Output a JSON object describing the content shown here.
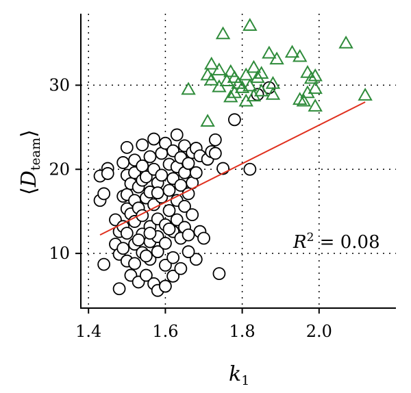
{
  "chart_data": {
    "type": "scatter",
    "title": "",
    "xlabel": "k",
    "xlabel_sub": "1",
    "ylabel": "D",
    "ylabel_sub": "team",
    "xlim": [
      1.38,
      2.2
    ],
    "ylim": [
      3.5,
      38.5
    ],
    "x_ticks": [
      1.4,
      1.6,
      1.8,
      2.0
    ],
    "x_tick_labels": [
      "1.4",
      "1.6",
      "1.8",
      "2.0"
    ],
    "y_ticks": [
      10,
      20,
      30
    ],
    "y_tick_labels": [
      "10",
      "20",
      "30"
    ],
    "grid": true,
    "annotation": {
      "r2_label": "R",
      "r2_sup": "2",
      "r2_value": " = 0.08"
    },
    "series": [
      {
        "marker": "circle",
        "color": "#000000",
        "points": [
          [
            1.43,
            19.2
          ],
          [
            1.43,
            16.3
          ],
          [
            1.44,
            17.1
          ],
          [
            1.45,
            20.1
          ],
          [
            1.45,
            19.5
          ],
          [
            1.44,
            8.7
          ],
          [
            1.47,
            14.0
          ],
          [
            1.47,
            11.1
          ],
          [
            1.48,
            12.6
          ],
          [
            1.48,
            9.9
          ],
          [
            1.48,
            5.8
          ],
          [
            1.49,
            13.2
          ],
          [
            1.49,
            10.6
          ],
          [
            1.49,
            16.8
          ],
          [
            1.49,
            20.8
          ],
          [
            1.5,
            22.6
          ],
          [
            1.5,
            19.3
          ],
          [
            1.5,
            17.0
          ],
          [
            1.5,
            15.3
          ],
          [
            1.5,
            12.4
          ],
          [
            1.5,
            9.1
          ],
          [
            1.51,
            7.4
          ],
          [
            1.51,
            14.7
          ],
          [
            1.51,
            18.3
          ],
          [
            1.52,
            21.1
          ],
          [
            1.52,
            19.6
          ],
          [
            1.52,
            16.3
          ],
          [
            1.52,
            13.8
          ],
          [
            1.52,
            11.1
          ],
          [
            1.52,
            8.8
          ],
          [
            1.53,
            6.6
          ],
          [
            1.53,
            15.4
          ],
          [
            1.53,
            17.9
          ],
          [
            1.54,
            20.4
          ],
          [
            1.54,
            22.9
          ],
          [
            1.54,
            18.7
          ],
          [
            1.54,
            14.5
          ],
          [
            1.54,
            12.3
          ],
          [
            1.54,
            10.1
          ],
          [
            1.55,
            7.4
          ],
          [
            1.55,
            16.6
          ],
          [
            1.55,
            19.1
          ],
          [
            1.56,
            21.5
          ],
          [
            1.56,
            17.3
          ],
          [
            1.56,
            13.2
          ],
          [
            1.56,
            11.4
          ],
          [
            1.56,
            9.3
          ],
          [
            1.57,
            6.4
          ],
          [
            1.57,
            23.6
          ],
          [
            1.57,
            20.0
          ],
          [
            1.57,
            15.8
          ],
          [
            1.58,
            18.4
          ],
          [
            1.58,
            14.1
          ],
          [
            1.58,
            12.0
          ],
          [
            1.58,
            10.2
          ],
          [
            1.58,
            5.6
          ],
          [
            1.59,
            21.9
          ],
          [
            1.59,
            19.3
          ],
          [
            1.59,
            16.7
          ],
          [
            1.6,
            23.1
          ],
          [
            1.6,
            13.4
          ],
          [
            1.6,
            11.2
          ],
          [
            1.6,
            8.6
          ],
          [
            1.6,
            6.1
          ],
          [
            1.61,
            20.6
          ],
          [
            1.61,
            17.5
          ],
          [
            1.61,
            15.1
          ],
          [
            1.62,
            22.2
          ],
          [
            1.62,
            18.9
          ],
          [
            1.62,
            12.6
          ],
          [
            1.62,
            9.5
          ],
          [
            1.62,
            7.3
          ],
          [
            1.63,
            24.1
          ],
          [
            1.63,
            20.3
          ],
          [
            1.63,
            16.3
          ],
          [
            1.63,
            14.0
          ],
          [
            1.64,
            21.4
          ],
          [
            1.64,
            18.1
          ],
          [
            1.64,
            11.8
          ],
          [
            1.64,
            8.2
          ],
          [
            1.65,
            22.8
          ],
          [
            1.65,
            19.6
          ],
          [
            1.65,
            15.6
          ],
          [
            1.65,
            13.1
          ],
          [
            1.66,
            20.7
          ],
          [
            1.66,
            17.1
          ],
          [
            1.66,
            12.2
          ],
          [
            1.67,
            22.0
          ],
          [
            1.67,
            18.4
          ],
          [
            1.67,
            14.6
          ],
          [
            1.68,
            19.6
          ],
          [
            1.68,
            9.3
          ],
          [
            1.68,
            22.5
          ],
          [
            1.69,
            21.6
          ],
          [
            1.69,
            12.6
          ],
          [
            1.7,
            11.8
          ],
          [
            1.71,
            21.2
          ],
          [
            1.72,
            22.1
          ],
          [
            1.73,
            23.5
          ],
          [
            1.73,
            21.9
          ],
          [
            1.74,
            7.6
          ],
          [
            1.75,
            20.1
          ],
          [
            1.78,
            25.9
          ],
          [
            1.82,
            20.0
          ],
          [
            1.84,
            28.9
          ],
          [
            1.87,
            29.7
          ],
          [
            1.56,
            12.4
          ],
          [
            1.58,
            17.2
          ],
          [
            1.53,
            11.6
          ],
          [
            1.61,
            12.9
          ],
          [
            1.66,
            10.2
          ],
          [
            1.55,
            9.7
          ]
        ]
      },
      {
        "marker": "triangle",
        "color": "#2e8b3a",
        "points": [
          [
            1.66,
            29.5
          ],
          [
            1.71,
            25.7
          ],
          [
            1.71,
            31.2
          ],
          [
            1.72,
            32.5
          ],
          [
            1.72,
            30.6
          ],
          [
            1.74,
            31.8
          ],
          [
            1.74,
            29.8
          ],
          [
            1.75,
            36.1
          ],
          [
            1.76,
            30.5
          ],
          [
            1.77,
            31.6
          ],
          [
            1.77,
            28.6
          ],
          [
            1.78,
            30.9
          ],
          [
            1.78,
            29.1
          ],
          [
            1.79,
            30.2
          ],
          [
            1.8,
            29.7
          ],
          [
            1.81,
            31.2
          ],
          [
            1.81,
            28.1
          ],
          [
            1.82,
            37.1
          ],
          [
            1.82,
            29.9
          ],
          [
            1.83,
            32.1
          ],
          [
            1.83,
            28.7
          ],
          [
            1.84,
            30.9
          ],
          [
            1.85,
            31.4
          ],
          [
            1.85,
            29.3
          ],
          [
            1.87,
            33.8
          ],
          [
            1.88,
            28.9
          ],
          [
            1.88,
            30.2
          ],
          [
            1.89,
            33.1
          ],
          [
            1.93,
            33.9
          ],
          [
            1.95,
            28.3
          ],
          [
            1.95,
            33.4
          ],
          [
            1.96,
            28.1
          ],
          [
            1.97,
            31.5
          ],
          [
            1.97,
            29.1
          ],
          [
            1.98,
            30.8
          ],
          [
            1.99,
            29.6
          ],
          [
            1.99,
            27.5
          ],
          [
            1.99,
            31.1
          ],
          [
            2.07,
            35.0
          ],
          [
            2.12,
            28.8
          ]
        ]
      }
    ],
    "fit_line": {
      "color": "#e0301e",
      "x": [
        1.43,
        2.12
      ],
      "y": [
        12.2,
        28.0
      ]
    }
  }
}
